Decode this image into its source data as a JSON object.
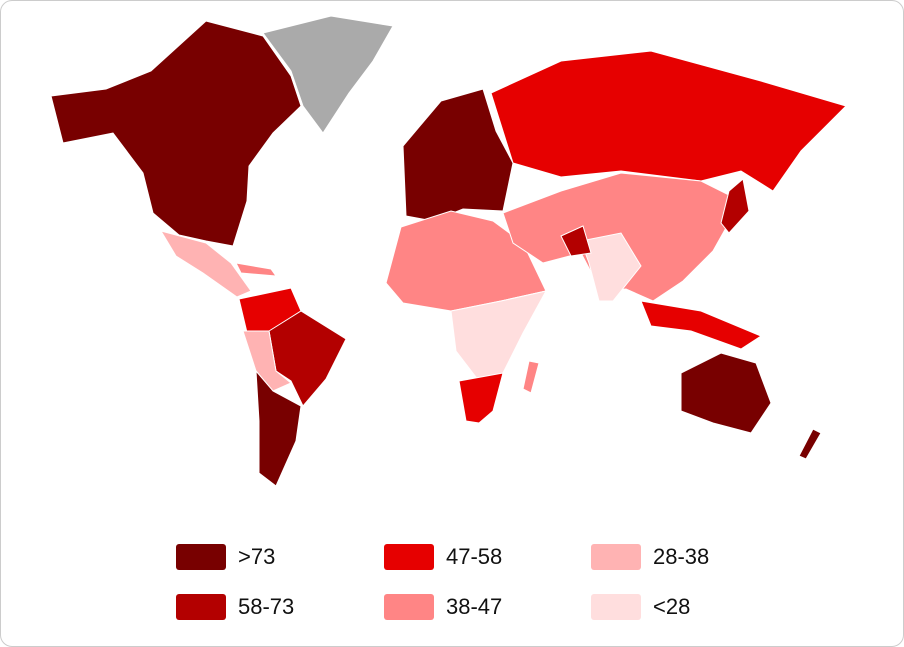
{
  "legend": [
    {
      "label": ">73",
      "color": "#780000"
    },
    {
      "label": "58-73",
      "color": "#b30000"
    },
    {
      "label": "47-58",
      "color": "#e60000"
    },
    {
      "label": "38-47",
      "color": "#ff8585"
    },
    {
      "label": "28-38",
      "color": "#ffb3b3"
    },
    {
      "label": "<28",
      "color": "#ffdede"
    }
  ]
}
